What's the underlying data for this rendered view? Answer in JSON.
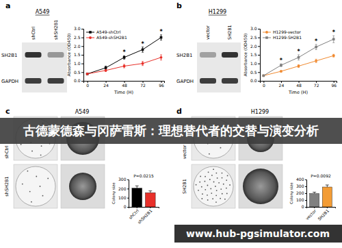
{
  "figure": {
    "banner": "古德蒙德森与冈萨雷斯：理想替代者的交替与演变分析",
    "watermark": "www.hub-pgsimulator.com",
    "panels": [
      {
        "label": "a",
        "title": "A549",
        "lanes": [
          "shCtrl",
          "shSH2B1"
        ],
        "rows": [
          "SH2B1",
          "GAPDH"
        ]
      },
      {
        "label": "b",
        "title": "H1299",
        "lanes": [
          "vector",
          "SH2B1"
        ],
        "rows": [
          "SH2B1",
          "GAPDH"
        ]
      },
      {
        "label": "c",
        "title": "A549",
        "row_labels": [
          "shCtrl",
          "shSH2B1"
        ]
      },
      {
        "label": "d",
        "title": "H1299",
        "row_labels": [
          "vector",
          "SH2B1"
        ]
      }
    ]
  },
  "chart_data": [
    {
      "type": "line",
      "x": [
        0,
        24,
        48,
        72,
        96
      ],
      "xlabel": "Time (H)",
      "ylabel": "Absorbance (OD450)",
      "xlim": [
        -5,
        100
      ],
      "xticks": [
        0,
        24,
        48,
        72,
        96
      ],
      "ylim": [
        0,
        3
      ],
      "yticks": [
        {
          "value": 0,
          "label": "0.0"
        },
        0.5,
        {
          "value": 1,
          "label": "1.0"
        },
        1.5,
        {
          "value": 2,
          "label": "2.0"
        },
        2.5,
        {
          "value": 3,
          "label": "3.0"
        }
      ],
      "legend": "upper left",
      "series": [
        {
          "name": "A549-shCtrl",
          "color": "#000000",
          "marker": "square",
          "values": [
            0.4,
            0.75,
            1.35,
            1.8,
            2.5
          ],
          "errors": [
            0.03,
            0.1,
            0.1,
            0.15,
            0.15
          ]
        },
        {
          "name": "A549-shSH2B1",
          "color": "#e8302a",
          "marker": "circle",
          "values": [
            0.4,
            0.6,
            0.85,
            1.0,
            1.35
          ],
          "errors": [
            0.03,
            0.06,
            0.1,
            0.12,
            0.15
          ]
        }
      ],
      "annotations": [
        {
          "text": "*",
          "x": 48
        },
        {
          "text": "*",
          "x": 72
        },
        {
          "text": "*",
          "x": 96
        }
      ]
    },
    {
      "type": "line",
      "x": [
        0,
        24,
        48,
        72,
        96
      ],
      "xlabel": "Time (H)",
      "ylabel": "Absorbance (OD450)",
      "xlim": [
        -5,
        100
      ],
      "xticks": [
        0,
        24,
        48,
        72,
        96
      ],
      "ylim": [
        0,
        3
      ],
      "yticks": [
        {
          "value": 0,
          "label": "0.0"
        },
        0.5,
        {
          "value": 1,
          "label": "1.0"
        },
        1.5,
        {
          "value": 2,
          "label": "2.0"
        },
        2.5,
        {
          "value": 3,
          "label": "3.0"
        }
      ],
      "legend": "upper left",
      "series": [
        {
          "name": "H1299-vector",
          "color": "#f08a30",
          "marker": "circle",
          "values": [
            0.3,
            0.55,
            0.85,
            1.15,
            1.45
          ],
          "errors": [
            0.03,
            0.05,
            0.08,
            0.1,
            0.08
          ]
        },
        {
          "name": "H1299-SH2B1",
          "color": "#7f7f7f",
          "marker": "square",
          "values": [
            0.3,
            0.9,
            1.35,
            1.95,
            2.4
          ],
          "errors": [
            0.03,
            0.08,
            0.15,
            0.15,
            0.2
          ]
        }
      ],
      "annotations": [
        {
          "text": "*",
          "x": 24
        },
        {
          "text": "*",
          "x": 48
        },
        {
          "text": "*",
          "x": 72
        },
        {
          "text": "*",
          "x": 96
        }
      ]
    },
    {
      "type": "bar",
      "categories": [
        "shCtrl",
        "shSH2B1"
      ],
      "ylabel": "Colony size",
      "values": [
        205,
        155
      ],
      "errors": [
        25,
        20
      ],
      "colors": [
        "#000000",
        "#e8302a"
      ],
      "ylim": [
        0,
        300
      ],
      "yticks": [
        0,
        100,
        200,
        300
      ],
      "annotations": [
        {
          "text": "P=0.0215"
        }
      ]
    },
    {
      "type": "bar",
      "categories": [
        "vector",
        "SH2B1"
      ],
      "ylabel": "Colony size",
      "values": [
        195,
        290
      ],
      "errors": [
        20,
        30
      ],
      "colors": [
        "#808080",
        "#f39c35"
      ],
      "ylim": [
        0,
        400
      ],
      "yticks": [
        0,
        100,
        200,
        300,
        400
      ],
      "annotations": [
        {
          "text": "P=0.0092"
        }
      ]
    }
  ]
}
